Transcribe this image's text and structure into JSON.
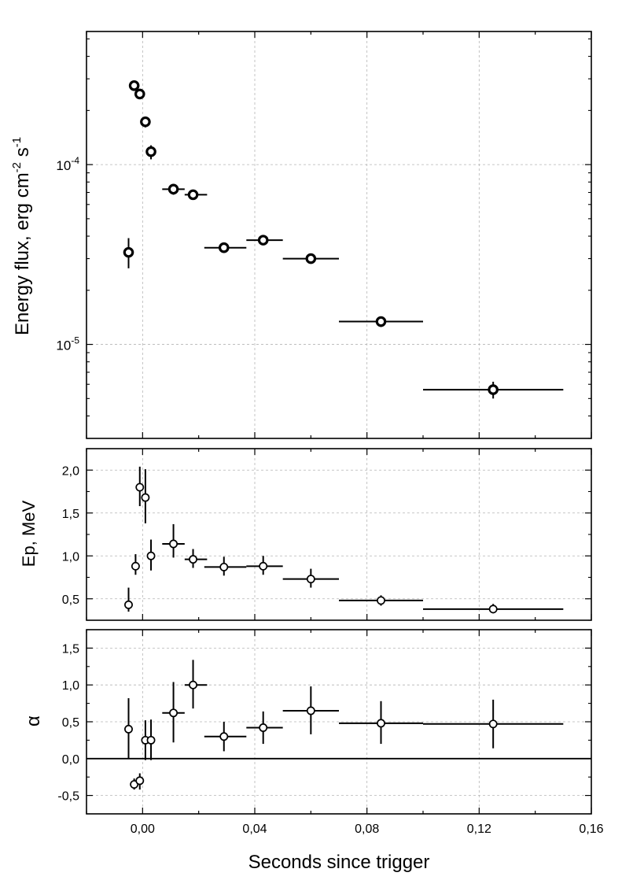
{
  "chart_data": {
    "type": "scatter",
    "x_label": "Seconds since trigger",
    "x_range": [
      -0.02,
      0.16
    ],
    "x_ticks": [
      {
        "value": 0.0,
        "label": "0,00"
      },
      {
        "value": 0.04,
        "label": "0,04"
      },
      {
        "value": 0.08,
        "label": "0,08"
      },
      {
        "value": 0.12,
        "label": "0,12"
      },
      {
        "value": 0.16,
        "label": "0,16"
      }
    ],
    "panels": [
      {
        "id": "flux",
        "scale": "log",
        "ylabel_parts": [
          "Energy flux, erg cm",
          "-2",
          " s",
          "-1"
        ],
        "y_range": [
          3e-06,
          0.00055
        ],
        "y_major_ticks": [
          {
            "value": 1e-05,
            "base": "10",
            "exp": "-5"
          },
          {
            "value": 0.0001,
            "base": "10",
            "exp": "-4"
          }
        ],
        "points": [
          {
            "x": -0.005,
            "xlo": -0.005,
            "xhi": -0.005,
            "y": 3.25e-05,
            "ylo": 2.65e-05,
            "yhi": 3.9e-05
          },
          {
            "x": -0.003,
            "xlo": -0.003,
            "xhi": -0.003,
            "y": 0.000275,
            "ylo": 0.000265,
            "yhi": 0.000285
          },
          {
            "x": -0.001,
            "xlo": -0.001,
            "xhi": -0.001,
            "y": 0.000247,
            "ylo": 0.000237,
            "yhi": 0.000257
          },
          {
            "x": 0.001,
            "xlo": 0.001,
            "xhi": 0.001,
            "y": 0.000173,
            "ylo": 0.000161,
            "yhi": 0.000185
          },
          {
            "x": 0.003,
            "xlo": 0.003,
            "xhi": 0.003,
            "y": 0.000118,
            "ylo": 0.000107,
            "yhi": 0.000128
          },
          {
            "x": 0.011,
            "xlo": 0.007,
            "xhi": 0.015,
            "y": 7.3e-05,
            "ylo": 6.8e-05,
            "yhi": 7.8e-05
          },
          {
            "x": 0.018,
            "xlo": 0.015,
            "xhi": 0.023,
            "y": 6.8e-05,
            "ylo": 6.5e-05,
            "yhi": 7.1e-05
          },
          {
            "x": 0.029,
            "xlo": 0.022,
            "xhi": 0.037,
            "y": 3.45e-05,
            "ylo": 3.3e-05,
            "yhi": 3.6e-05
          },
          {
            "x": 0.043,
            "xlo": 0.037,
            "xhi": 0.05,
            "y": 3.8e-05,
            "ylo": 3.65e-05,
            "yhi": 3.95e-05
          },
          {
            "x": 0.06,
            "xlo": 0.05,
            "xhi": 0.07,
            "y": 3e-05,
            "ylo": 2.88e-05,
            "yhi": 3.12e-05
          },
          {
            "x": 0.085,
            "xlo": 0.07,
            "xhi": 0.1,
            "y": 1.34e-05,
            "ylo": 1.25e-05,
            "yhi": 1.43e-05
          },
          {
            "x": 0.125,
            "xlo": 0.1,
            "xhi": 0.15,
            "y": 5.6e-06,
            "ylo": 5e-06,
            "yhi": 6.2e-06
          }
        ]
      },
      {
        "id": "ep",
        "scale": "linear",
        "ylabel": "Ep, MeV",
        "y_range": [
          0.25,
          2.25
        ],
        "y_ticks": [
          {
            "value": 0.5,
            "label": "0,5"
          },
          {
            "value": 1.0,
            "label": "1,0"
          },
          {
            "value": 1.5,
            "label": "1,5"
          },
          {
            "value": 2.0,
            "label": "2,0"
          }
        ],
        "points": [
          {
            "x": -0.005,
            "xlo": -0.005,
            "xhi": -0.005,
            "y": 0.43,
            "ylo": 0.35,
            "yhi": 0.63
          },
          {
            "x": -0.0025,
            "xlo": -0.0025,
            "xhi": -0.0025,
            "y": 0.88,
            "ylo": 0.78,
            "yhi": 1.02
          },
          {
            "x": -0.001,
            "xlo": -0.001,
            "xhi": -0.001,
            "y": 1.8,
            "ylo": 1.58,
            "yhi": 2.04
          },
          {
            "x": 0.001,
            "xlo": 0.001,
            "xhi": 0.001,
            "y": 1.68,
            "ylo": 1.38,
            "yhi": 2.01
          },
          {
            "x": 0.003,
            "xlo": 0.003,
            "xhi": 0.003,
            "y": 1.0,
            "ylo": 0.83,
            "yhi": 1.19
          },
          {
            "x": 0.011,
            "xlo": 0.007,
            "xhi": 0.015,
            "y": 1.14,
            "ylo": 0.98,
            "yhi": 1.37
          },
          {
            "x": 0.018,
            "xlo": 0.015,
            "xhi": 0.023,
            "y": 0.96,
            "ylo": 0.86,
            "yhi": 1.08
          },
          {
            "x": 0.029,
            "xlo": 0.022,
            "xhi": 0.037,
            "y": 0.87,
            "ylo": 0.77,
            "yhi": 0.99
          },
          {
            "x": 0.043,
            "xlo": 0.037,
            "xhi": 0.05,
            "y": 0.88,
            "ylo": 0.78,
            "yhi": 1.0
          },
          {
            "x": 0.06,
            "xlo": 0.05,
            "xhi": 0.07,
            "y": 0.73,
            "ylo": 0.63,
            "yhi": 0.85
          },
          {
            "x": 0.085,
            "xlo": 0.07,
            "xhi": 0.1,
            "y": 0.48,
            "ylo": 0.42,
            "yhi": 0.54
          },
          {
            "x": 0.125,
            "xlo": 0.1,
            "xhi": 0.15,
            "y": 0.38,
            "ylo": 0.33,
            "yhi": 0.44
          }
        ]
      },
      {
        "id": "alpha",
        "scale": "linear",
        "ylabel": "α",
        "y_range": [
          -0.75,
          1.75
        ],
        "zero_line": true,
        "y_ticks": [
          {
            "value": -0.5,
            "label": "-0,5"
          },
          {
            "value": 0.0,
            "label": "0,0"
          },
          {
            "value": 0.5,
            "label": "0,5"
          },
          {
            "value": 1.0,
            "label": "1,0"
          },
          {
            "value": 1.5,
            "label": "1,5"
          }
        ],
        "points": [
          {
            "x": -0.005,
            "xlo": -0.005,
            "xhi": -0.005,
            "y": 0.4,
            "ylo": 0.0,
            "yhi": 0.82
          },
          {
            "x": -0.003,
            "xlo": -0.003,
            "xhi": -0.003,
            "y": -0.35,
            "ylo": -0.42,
            "yhi": -0.27
          },
          {
            "x": -0.001,
            "xlo": -0.001,
            "xhi": -0.001,
            "y": -0.3,
            "ylo": -0.42,
            "yhi": -0.2
          },
          {
            "x": 0.001,
            "xlo": 0.001,
            "xhi": 0.001,
            "y": 0.25,
            "ylo": -0.02,
            "yhi": 0.52
          },
          {
            "x": 0.003,
            "xlo": 0.003,
            "xhi": 0.003,
            "y": 0.25,
            "ylo": -0.02,
            "yhi": 0.53
          },
          {
            "x": 0.011,
            "xlo": 0.007,
            "xhi": 0.015,
            "y": 0.62,
            "ylo": 0.22,
            "yhi": 1.04
          },
          {
            "x": 0.018,
            "xlo": 0.015,
            "xhi": 0.023,
            "y": 1.0,
            "ylo": 0.68,
            "yhi": 1.34
          },
          {
            "x": 0.029,
            "xlo": 0.022,
            "xhi": 0.037,
            "y": 0.3,
            "ylo": 0.1,
            "yhi": 0.5
          },
          {
            "x": 0.043,
            "xlo": 0.037,
            "xhi": 0.05,
            "y": 0.42,
            "ylo": 0.2,
            "yhi": 0.64
          },
          {
            "x": 0.06,
            "xlo": 0.05,
            "xhi": 0.07,
            "y": 0.65,
            "ylo": 0.33,
            "yhi": 0.98
          },
          {
            "x": 0.085,
            "xlo": 0.07,
            "xhi": 0.1,
            "y": 0.48,
            "ylo": 0.2,
            "yhi": 0.78
          },
          {
            "x": 0.125,
            "xlo": 0.1,
            "xhi": 0.15,
            "y": 0.47,
            "ylo": 0.14,
            "yhi": 0.8
          }
        ]
      }
    ]
  }
}
